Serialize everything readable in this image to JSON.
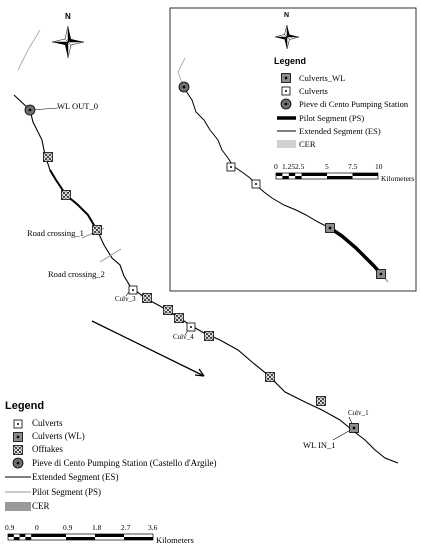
{
  "main_map": {
    "labels": {
      "wl_out": "WL OUT_0",
      "road_crossing_1": "Road crossing_1",
      "road_crossing_2": "Road crossing_2",
      "culv_3": "Culv_3",
      "culv_4": "Culv_4",
      "culv_1": "Culv_1",
      "wl_in": "WL IN_1"
    },
    "north_label": "N"
  },
  "main_legend": {
    "title": "Legend",
    "items": [
      {
        "label": "Culverts",
        "symbol": "culvert-icon"
      },
      {
        "label": "Culverts (WL)",
        "symbol": "culvert-wl-icon"
      },
      {
        "label": "Offtakes",
        "symbol": "offtake-icon"
      },
      {
        "label": "Pieve di Cento Pumping Station (Castello d'Argile)",
        "symbol": "pumping-station-icon"
      },
      {
        "label": "Extended Segment (ES)",
        "symbol": "thin-line"
      },
      {
        "label": "Pilot Segment (PS)",
        "symbol": "grey-line"
      },
      {
        "label": "CER",
        "symbol": "grey-box"
      }
    ],
    "scale_ticks": [
      "0.9",
      "0",
      "0.9",
      "1.8",
      "2.7",
      "3.6"
    ],
    "scale_unit": "Kilometers"
  },
  "inset_map": {
    "north_label": "N",
    "legend_title": "Legend",
    "legend_items": [
      {
        "label": "Culverts_WL",
        "symbol": "culvert-wl-icon"
      },
      {
        "label": "Culverts",
        "symbol": "culvert-icon"
      },
      {
        "label": "Pieve di Cento Pumping Station",
        "symbol": "pumping-station-icon"
      },
      {
        "label": "Pilot Segment (PS)",
        "symbol": "thick-line"
      },
      {
        "label": "Extended Segment (ES)",
        "symbol": "thin-line"
      },
      {
        "label": "CER",
        "symbol": "grey-box"
      }
    ],
    "scale_ticks": [
      "0",
      "1.25",
      "2.5",
      "5",
      "7.5",
      "10"
    ],
    "scale_unit": "Kilometers"
  },
  "colors": {
    "line": "#000000",
    "pilot_grey": "#999999",
    "cer_grey": "#cfcfcf",
    "culvert_wl_fill": "#8c8c8c",
    "pumping_fill": "#6e6e6e"
  }
}
